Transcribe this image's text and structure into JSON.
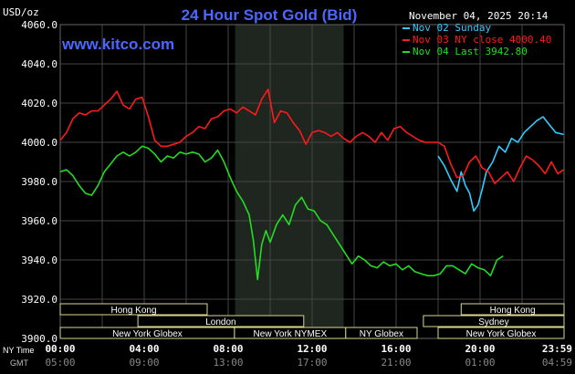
{
  "header": {
    "title": "24 Hour Spot Gold (Bid)",
    "unit_label": "USD/oz",
    "datetime": "November 04, 2025 20:14",
    "site": "www.kitco.com"
  },
  "legend": [
    {
      "label": "Nov 02 Sunday",
      "color": "#33CCFF"
    },
    {
      "label": "Nov 03 NY close 4000.40",
      "color": "#FF1A1A"
    },
    {
      "label": "Nov 04 Last 3942.80",
      "color": "#22DD22"
    }
  ],
  "y_ticks": [
    "4060.0",
    "4040.0",
    "4020.0",
    "4000.0",
    "3980.0",
    "3960.0",
    "3940.0",
    "3920.0",
    "3900.0"
  ],
  "x_axis": {
    "row1_title": "NY Time",
    "row2_title": "GMT",
    "ny_ticks": [
      "00:00",
      "04:00",
      "08:00",
      "12:00",
      "16:00",
      "20:00",
      "23:59"
    ],
    "gmt_ticks": [
      "05:00",
      "09:00",
      "13:00",
      "17:00",
      "21:00",
      "01:00",
      "04:59"
    ]
  },
  "markets": {
    "hong_kong_left": "Hong Kong",
    "london": "London",
    "new_york_globex_left": "New York Globex",
    "new_york_nymex": "New York NYMEX",
    "ny_globex": "NY Globex",
    "hong_kong_right": "Hong Kong",
    "sydney": "Sydney",
    "new_york_globex_right": "New York Globex"
  },
  "colors": {
    "background": "#000000",
    "grid": "#444444",
    "shaded_session": "#1f261f",
    "title": "#4A68FF",
    "site": "#4A68FF",
    "session_box": "#D8D890"
  },
  "chart_data": {
    "type": "line",
    "title": "24 Hour Spot Gold (Bid)",
    "ylabel": "USD/oz",
    "xlabel": "NY Time",
    "ylim": [
      3900,
      4060
    ],
    "xlim_hours": [
      0,
      24
    ],
    "grid": true,
    "series": [
      {
        "name": "Nov 02 Sunday",
        "color": "#33CCFF",
        "x": [
          18.0,
          18.3,
          18.6,
          18.9,
          19.1,
          19.3,
          19.5,
          19.7,
          19.9,
          20.1,
          20.3,
          20.6,
          20.9,
          21.2,
          21.5,
          21.8,
          22.1,
          22.4,
          22.7,
          23.0,
          23.3,
          23.6,
          23.98
        ],
        "y": [
          3993,
          3988,
          3981,
          3975,
          3985,
          3978,
          3974,
          3965,
          3968,
          3976,
          3985,
          3990,
          3998,
          3995,
          4002,
          4000,
          4005,
          4008,
          4011,
          4013,
          4009,
          4005,
          4004
        ]
      },
      {
        "name": "Nov 03 NY close 4000.40",
        "color": "#FF1A1A",
        "x": [
          0.0,
          0.3,
          0.6,
          0.9,
          1.2,
          1.5,
          1.8,
          2.1,
          2.4,
          2.7,
          3.0,
          3.3,
          3.6,
          3.9,
          4.2,
          4.5,
          4.8,
          5.1,
          5.4,
          5.7,
          6.0,
          6.3,
          6.6,
          6.9,
          7.2,
          7.5,
          7.8,
          8.1,
          8.4,
          8.7,
          9.0,
          9.3,
          9.6,
          9.9,
          10.2,
          10.5,
          10.8,
          11.1,
          11.4,
          11.7,
          12.0,
          12.3,
          12.6,
          12.9,
          13.2,
          13.5,
          13.8,
          14.1,
          14.4,
          14.7,
          15.0,
          15.3,
          15.6,
          15.9,
          16.2,
          16.5,
          16.8,
          17.1,
          17.4,
          17.7,
          18.0,
          18.3,
          18.6,
          18.9,
          19.2,
          19.5,
          19.8,
          20.1,
          20.4,
          20.7,
          21.0,
          21.3,
          21.6,
          21.9,
          22.2,
          22.5,
          22.8,
          23.1,
          23.4,
          23.7,
          23.98
        ],
        "y": [
          4001,
          4005,
          4012,
          4015,
          4014,
          4016,
          4016,
          4019,
          4022,
          4026,
          4019,
          4017,
          4022,
          4023,
          4013,
          4001,
          3998,
          3998,
          3999,
          4000,
          4003,
          4005,
          4008,
          4007,
          4012,
          4013,
          4016,
          4017,
          4015,
          4018,
          4016,
          4014,
          4022,
          4027,
          4010,
          4016,
          4015,
          4010,
          4006,
          3999,
          4005,
          4006,
          4005,
          4003,
          4005,
          4002,
          4000,
          4003,
          4005,
          4003,
          4000,
          4005,
          4001,
          4007,
          4008,
          4005,
          4003,
          4001,
          4000,
          4000,
          4000,
          3998,
          3989,
          3982,
          3983,
          3990,
          3993,
          3987,
          3985,
          3979,
          3982,
          3985,
          3980,
          3987,
          3993,
          3991,
          3988,
          3984,
          3990,
          3984,
          3986
        ]
      },
      {
        "name": "Nov 04 Last 3942.80",
        "color": "#22DD22",
        "x": [
          0.0,
          0.3,
          0.6,
          0.9,
          1.2,
          1.5,
          1.8,
          2.1,
          2.4,
          2.7,
          3.0,
          3.3,
          3.6,
          3.9,
          4.2,
          4.5,
          4.8,
          5.1,
          5.4,
          5.7,
          6.0,
          6.3,
          6.6,
          6.9,
          7.2,
          7.5,
          7.8,
          8.1,
          8.4,
          8.7,
          9.0,
          9.2,
          9.4,
          9.6,
          9.8,
          10.0,
          10.3,
          10.6,
          10.9,
          11.2,
          11.5,
          11.8,
          12.1,
          12.4,
          12.7,
          13.0,
          13.3,
          13.6,
          13.9,
          14.2,
          14.5,
          14.8,
          15.1,
          15.4,
          15.7,
          16.0,
          16.3,
          16.6,
          16.9,
          17.2,
          17.5,
          17.8,
          18.1,
          18.4,
          18.7,
          19.0,
          19.3,
          19.6,
          19.9,
          20.2,
          20.5,
          20.8,
          21.1
        ],
        "y": [
          3985,
          3986,
          3983,
          3978,
          3974,
          3973,
          3978,
          3985,
          3989,
          3993,
          3995,
          3993,
          3995,
          3998,
          3997,
          3994,
          3990,
          3993,
          3992,
          3995,
          3994,
          3995,
          3994,
          3990,
          3992,
          3996,
          3990,
          3982,
          3975,
          3970,
          3963,
          3950,
          3930,
          3948,
          3955,
          3949,
          3958,
          3963,
          3958,
          3968,
          3972,
          3966,
          3965,
          3960,
          3958,
          3953,
          3948,
          3943,
          3938,
          3942,
          3940,
          3937,
          3936,
          3939,
          3937,
          3938,
          3935,
          3937,
          3934,
          3933,
          3932,
          3932,
          3933,
          3937,
          3937,
          3935,
          3933,
          3938,
          3936,
          3935,
          3932,
          3940,
          3942
        ]
      }
    ]
  }
}
